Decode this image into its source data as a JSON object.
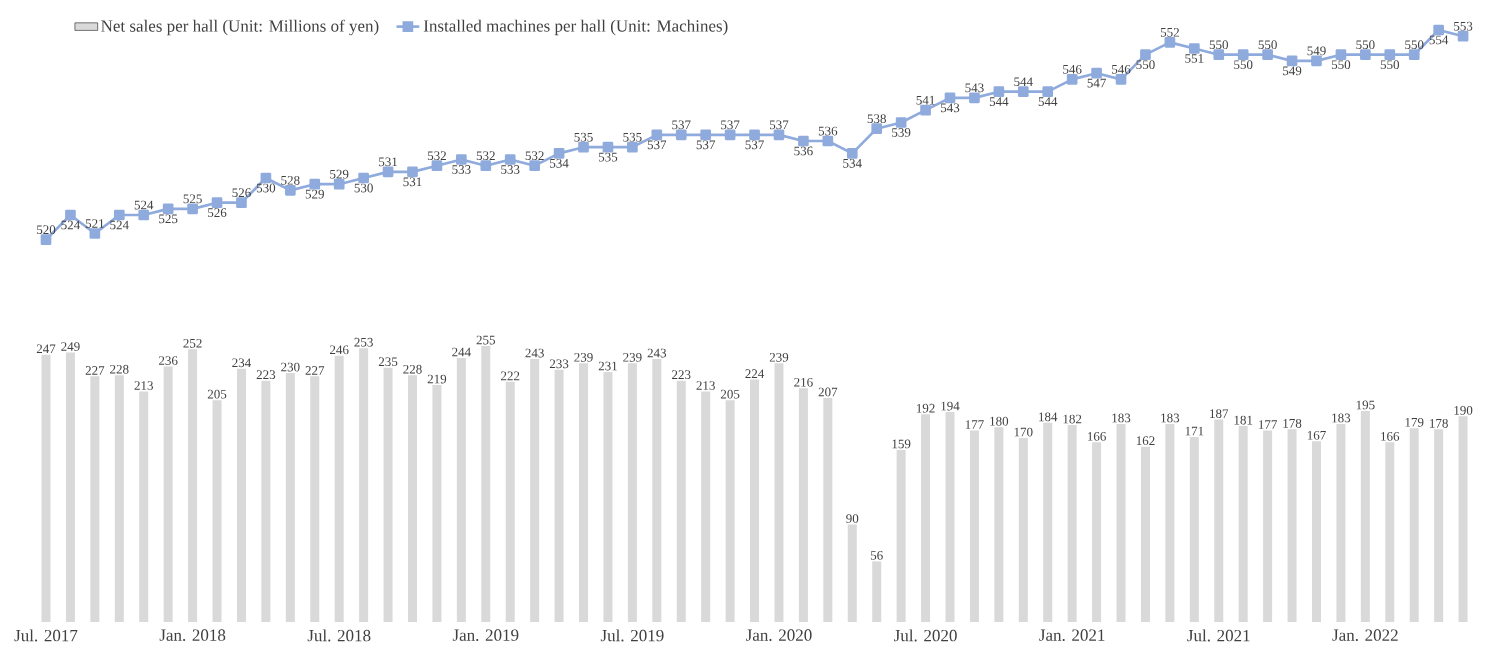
{
  "chart_data": {
    "type": "bar",
    "categories": [
      "Jul. 2017",
      null,
      null,
      null,
      null,
      null,
      "Jan. 2018",
      null,
      null,
      null,
      null,
      null,
      "Jul. 2018",
      null,
      null,
      null,
      null,
      null,
      "Jan. 2019",
      null,
      null,
      null,
      null,
      null,
      "Jul. 2019",
      null,
      null,
      null,
      null,
      null,
      "Jan. 2020",
      null,
      null,
      null,
      null,
      null,
      "Jul. 2020",
      null,
      null,
      null,
      null,
      null,
      "Jan. 2021",
      null,
      null,
      null,
      null,
      null,
      "Jul. 2021",
      null,
      null,
      null,
      null,
      null,
      "Jan. 2022",
      null,
      null,
      null,
      null
    ],
    "series": [
      {
        "name": "Net sales per hall (Unit: Millions of yen)",
        "color": "#d9d9d9",
        "values": [
          247,
          249,
          227,
          228,
          213,
          236,
          252,
          205,
          234,
          223,
          230,
          227,
          246,
          253,
          235,
          228,
          219,
          244,
          255,
          222,
          243,
          233,
          239,
          231,
          239,
          243,
          223,
          213,
          205,
          224,
          239,
          216,
          207,
          90,
          56,
          159,
          192,
          194,
          177,
          180,
          170,
          184,
          182,
          166,
          183,
          162,
          183,
          171,
          187,
          181,
          177,
          178,
          167,
          183,
          195,
          166,
          179,
          178,
          190
        ]
      },
      {
        "name": "Installed machines per hall (Unit: Machines)",
        "type": "line",
        "axis": "y2",
        "color": "#8faadc",
        "values": [
          520,
          524,
          521,
          524,
          524,
          525,
          525,
          526,
          526,
          530,
          528,
          529,
          529,
          530,
          531,
          531,
          532,
          533,
          532,
          533,
          532,
          534,
          535,
          535,
          535,
          537,
          537,
          537,
          537,
          537,
          537,
          536,
          536,
          534,
          538,
          539,
          541,
          543,
          543,
          544,
          544,
          544,
          546,
          547,
          546,
          550,
          552,
          551,
          550,
          550,
          550,
          549,
          549,
          550,
          550,
          550,
          550,
          554,
          553
        ]
      }
    ],
    "ylim": [
      0,
      547
    ],
    "y2lim": [
      458,
      554
    ],
    "data_labels": true,
    "legend": "top left",
    "tick_labels": "x",
    "marker": "square",
    "line_style": "solid"
  }
}
